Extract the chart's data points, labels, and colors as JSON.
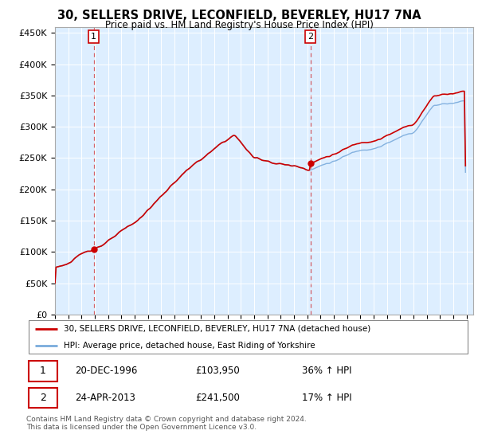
{
  "title": "30, SELLERS DRIVE, LECONFIELD, BEVERLEY, HU17 7NA",
  "subtitle": "Price paid vs. HM Land Registry's House Price Index (HPI)",
  "property_label": "30, SELLERS DRIVE, LECONFIELD, BEVERLEY, HU17 7NA (detached house)",
  "hpi_label": "HPI: Average price, detached house, East Riding of Yorkshire",
  "transaction1_date": "20-DEC-1996",
  "transaction1_price": 103950,
  "transaction1_hpi": "36% ↑ HPI",
  "transaction2_date": "24-APR-2013",
  "transaction2_price": 241500,
  "transaction2_hpi": "17% ↑ HPI",
  "footer": "Contains HM Land Registry data © Crown copyright and database right 2024.\nThis data is licensed under the Open Government Licence v3.0.",
  "property_color": "#cc0000",
  "hpi_color": "#7aabdc",
  "ylim": [
    0,
    460000
  ],
  "yticks": [
    0,
    50000,
    100000,
    150000,
    200000,
    250000,
    300000,
    350000,
    400000,
    450000
  ],
  "xstart": 1994.0,
  "xend": 2025.5,
  "background_color": "#ffffff",
  "plot_bg_color": "#ddeeff"
}
